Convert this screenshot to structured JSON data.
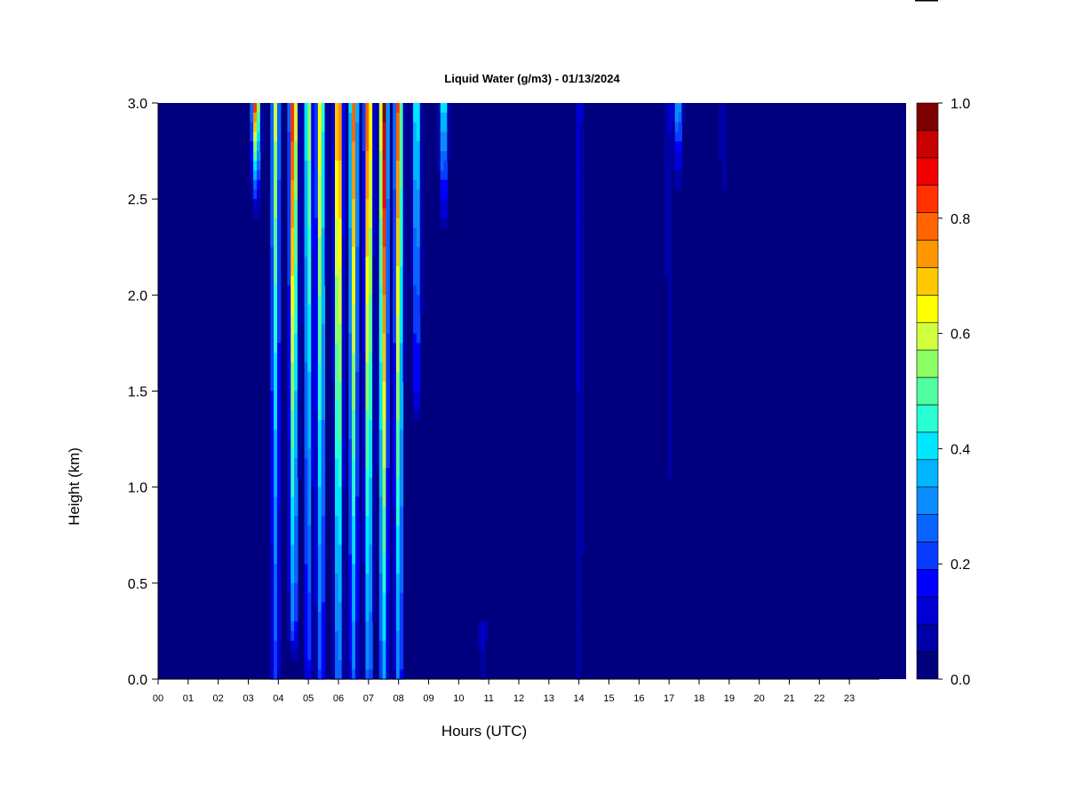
{
  "chart_data": {
    "type": "heatmap",
    "title": "Liquid Water (g/m3) - 01/13/2024",
    "xlabel": "Hours (UTC)",
    "ylabel": "Height (km)",
    "x_ticks": [
      "00",
      "01",
      "02",
      "03",
      "04",
      "05",
      "06",
      "07",
      "08",
      "09",
      "10",
      "11",
      "12",
      "13",
      "14",
      "15",
      "16",
      "17",
      "18",
      "19",
      "20",
      "21",
      "22",
      "23"
    ],
    "y_ticks": [
      "0.0",
      "0.5",
      "1.0",
      "1.5",
      "2.0",
      "2.5",
      "3.0"
    ],
    "xlim": [
      0,
      24
    ],
    "ylim": [
      0,
      3
    ],
    "colorbar": {
      "range": [
        0,
        1
      ],
      "ticks": [
        "0.0",
        "0.2",
        "0.4",
        "0.6",
        "0.8",
        "1.0"
      ],
      "colors": [
        "#00007F",
        "#0000A8",
        "#0000D4",
        "#0000FF",
        "#0A3CFF",
        "#0A64FF",
        "#0A8CFF",
        "#00B4FF",
        "#00E6FF",
        "#28FFD2",
        "#50FFA0",
        "#8CFF64",
        "#D2FF3C",
        "#FFFF00",
        "#FFC800",
        "#FF9600",
        "#FF6400",
        "#FF3200",
        "#F00000",
        "#C80000",
        "#7F0000"
      ]
    },
    "features": [
      {
        "hour": 3.25,
        "z_top": 3.0,
        "z_bottom": 2.6,
        "lwc": 0.9
      },
      {
        "hour": 3.9,
        "z_top": 3.0,
        "z_bottom": 0.0,
        "lwc": 0.6
      },
      {
        "hour": 4.5,
        "z_top": 3.0,
        "z_bottom": 0.3,
        "lwc": 0.9
      },
      {
        "hour": 5.0,
        "z_top": 3.0,
        "z_bottom": 0.1,
        "lwc": 0.6
      },
      {
        "hour": 5.4,
        "z_top": 3.0,
        "z_bottom": 0.0,
        "lwc": 0.7
      },
      {
        "hour": 6.0,
        "z_top": 3.0,
        "z_bottom": 0.0,
        "lwc": 0.9
      },
      {
        "hour": 6.5,
        "z_top": 3.0,
        "z_bottom": 0.0,
        "lwc": 0.8
      },
      {
        "hour": 7.0,
        "z_top": 3.0,
        "z_bottom": 0.0,
        "lwc": 0.9
      },
      {
        "hour": 7.5,
        "z_top": 3.0,
        "z_bottom": 0.0,
        "lwc": 1.0
      },
      {
        "hour": 8.0,
        "z_top": 3.0,
        "z_bottom": 0.0,
        "lwc": 0.85
      },
      {
        "hour": 8.6,
        "z_top": 3.0,
        "z_bottom": 1.5,
        "lwc": 0.5
      },
      {
        "hour": 9.5,
        "z_top": 3.0,
        "z_bottom": 2.5,
        "lwc": 0.5
      },
      {
        "hour": 10.8,
        "z_top": 0.3,
        "z_bottom": 0.0,
        "lwc": 0.15
      },
      {
        "hour": 14.0,
        "z_top": 3.0,
        "z_bottom": 0.0,
        "lwc": 0.15
      },
      {
        "hour": 17.0,
        "z_top": 3.0,
        "z_bottom": 0.5,
        "lwc": 0.1
      },
      {
        "hour": 17.3,
        "z_top": 3.0,
        "z_bottom": 2.7,
        "lwc": 0.4
      },
      {
        "hour": 18.8,
        "z_top": 3.0,
        "z_bottom": 2.4,
        "lwc": 0.1
      }
    ]
  }
}
